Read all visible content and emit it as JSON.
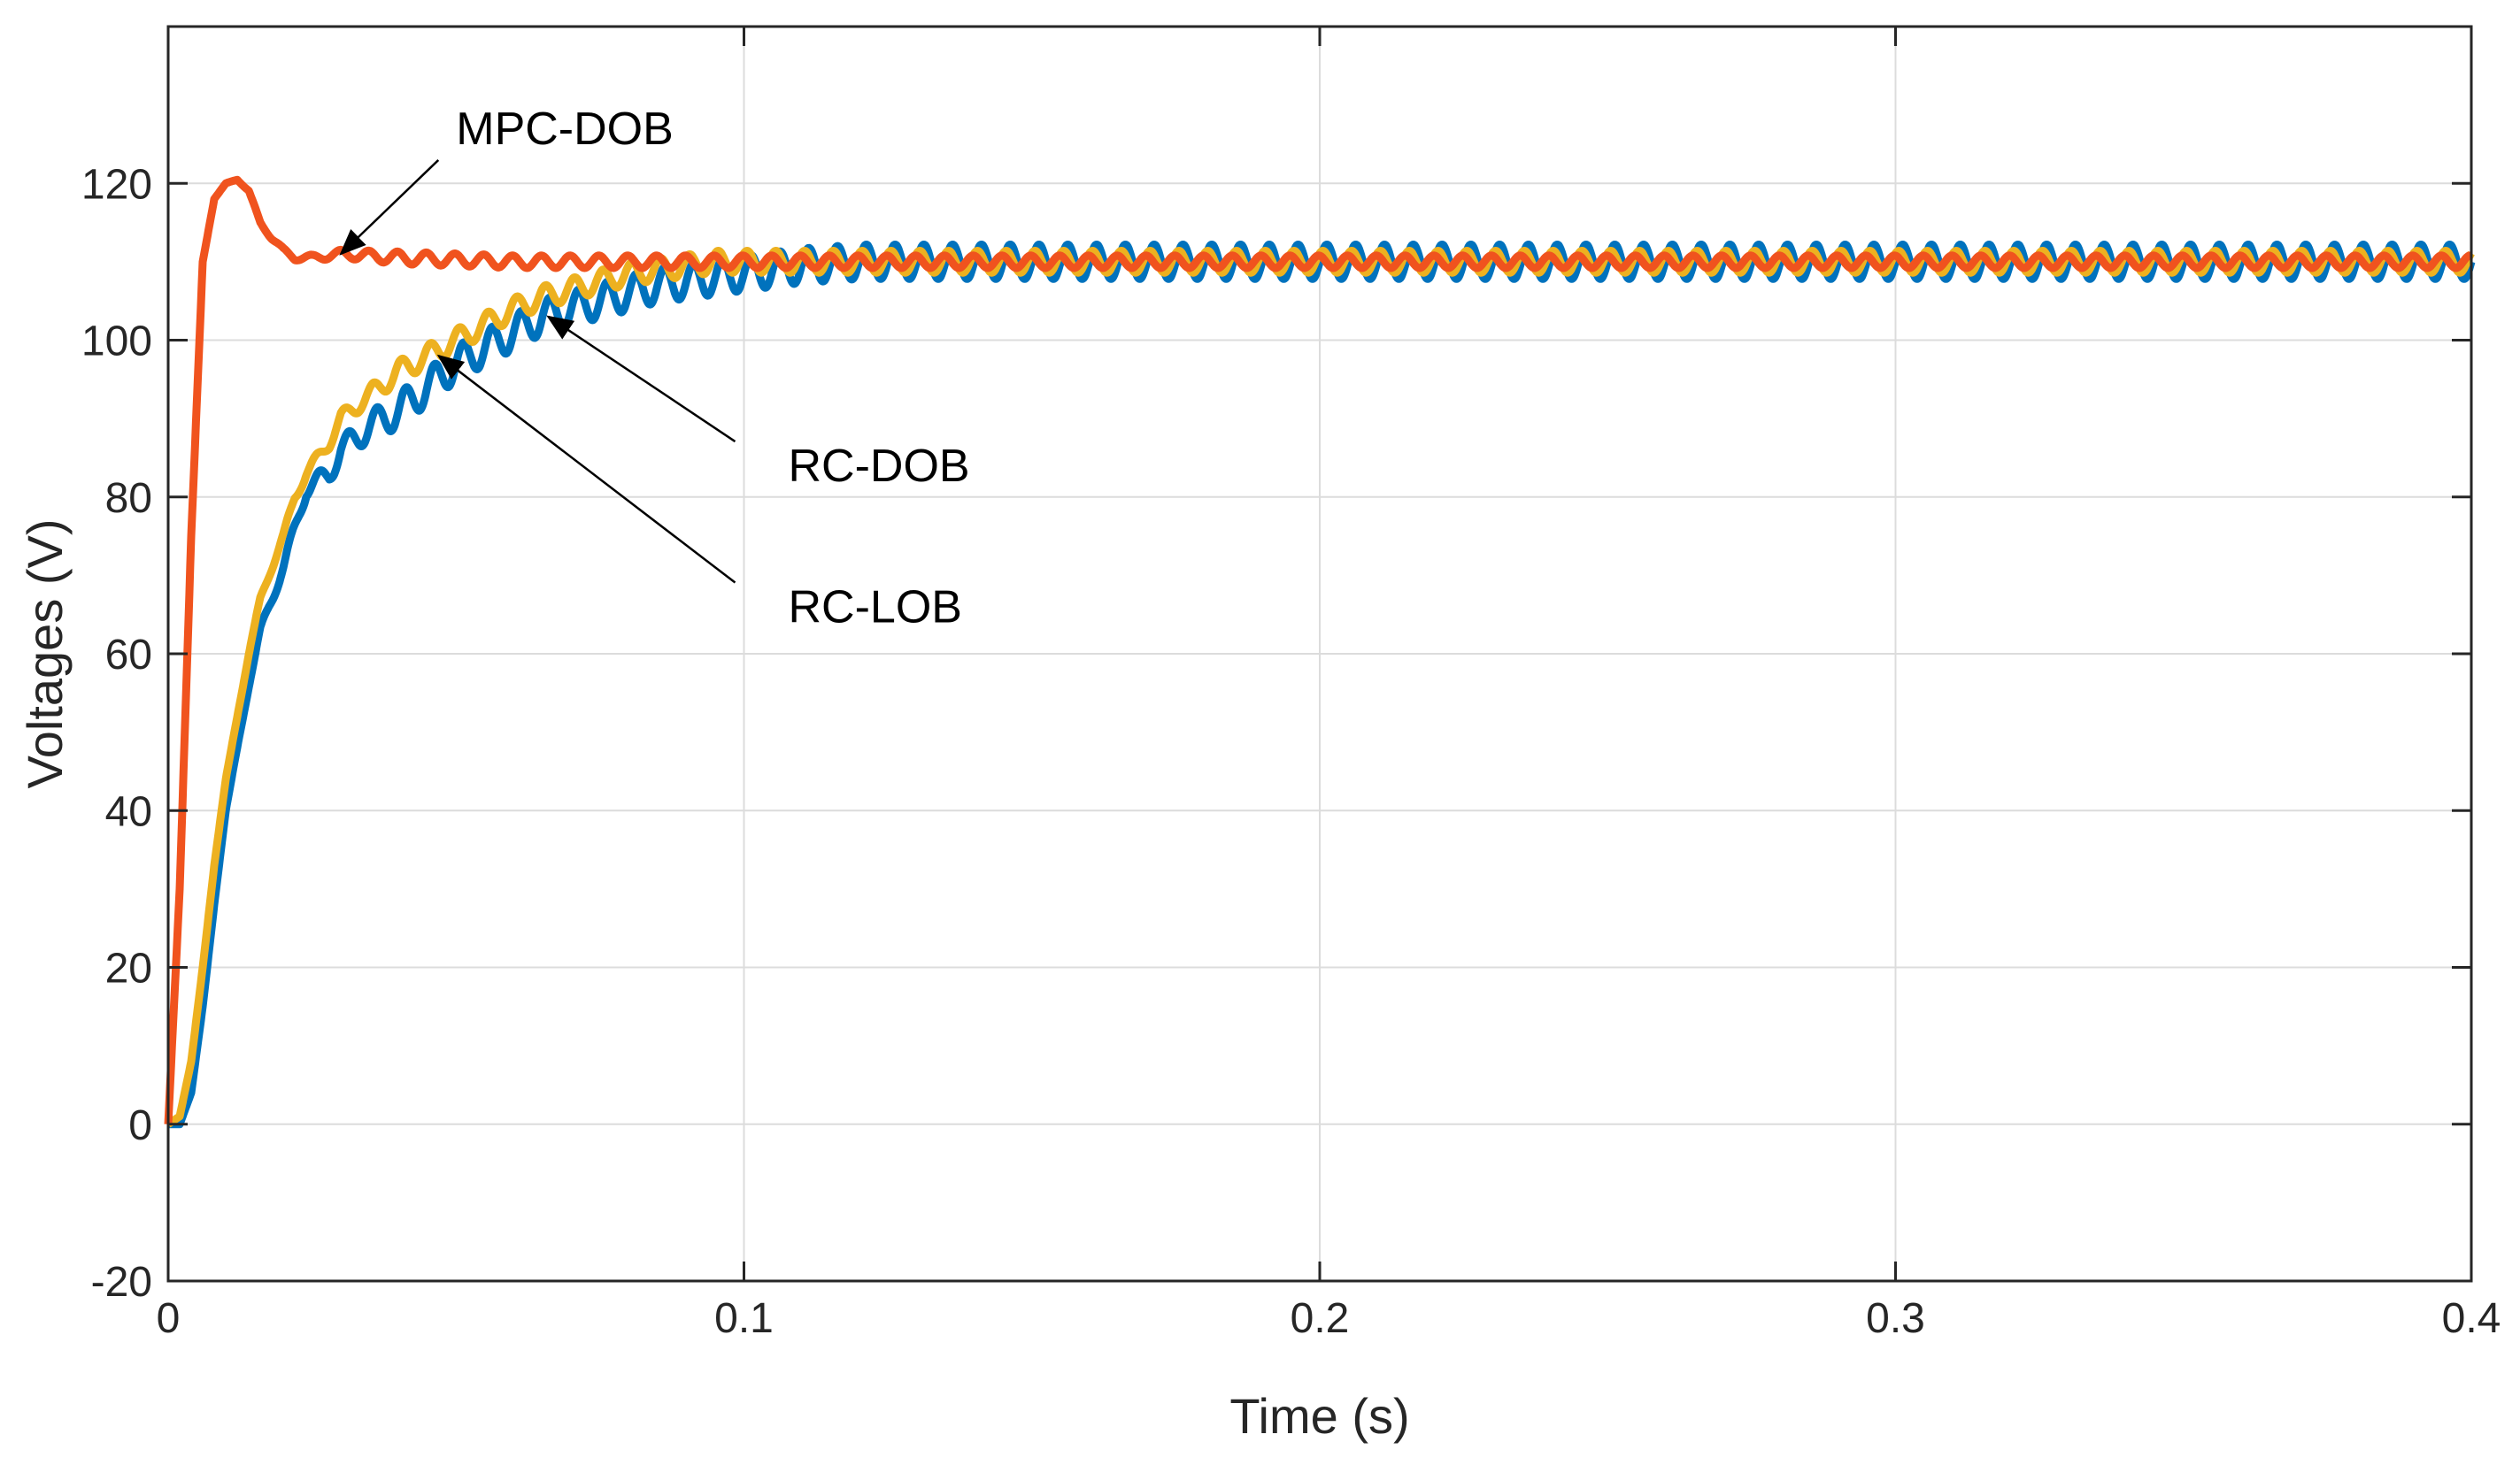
{
  "chart_data": {
    "type": "line",
    "title": "",
    "xlabel": "Time (s)",
    "ylabel": "Voltages (V)",
    "xlim": [
      0,
      0.4
    ],
    "ylim": [
      -20,
      140
    ],
    "xticks": [
      0,
      0.1,
      0.2,
      0.3,
      0.4
    ],
    "xtick_labels": [
      "0",
      "0.1",
      "0.2",
      "0.3",
      "0.4"
    ],
    "yticks": [
      -20,
      0,
      20,
      40,
      60,
      80,
      100,
      120
    ],
    "ytick_labels": [
      "-20",
      "0",
      "20",
      "40",
      "60",
      "80",
      "100",
      "120"
    ],
    "grid": true,
    "colors": {
      "mpc": "#f0531e",
      "rc_dob": "#0072bd",
      "rc_lob": "#edb120"
    },
    "series": [
      {
        "name": "RC-DOB",
        "color": "#0072bd",
        "x": [
          0,
          0.002,
          0.004,
          0.006,
          0.008,
          0.01,
          0.012,
          0.014,
          0.016,
          0.018,
          0.02,
          0.022,
          0.024,
          0.026,
          0.028,
          0.03,
          0.035,
          0.04,
          0.045,
          0.05,
          0.055,
          0.06,
          0.065,
          0.07,
          0.075,
          0.08,
          0.085,
          0.09,
          0.095,
          0.1,
          0.11,
          0.12,
          0.4
        ],
        "values": [
          0,
          0,
          4,
          15,
          28,
          40,
          48,
          56,
          63,
          67,
          71,
          76,
          81,
          82,
          83,
          86,
          89,
          91,
          94,
          97,
          99,
          101,
          103,
          104,
          105,
          106,
          107,
          107.5,
          108,
          108.5,
          109.5,
          110,
          110
        ],
        "osc_amp": 2.2,
        "osc_freq": 200
      },
      {
        "name": "RC-LOB",
        "color": "#edb120",
        "x": [
          0,
          0.002,
          0.004,
          0.006,
          0.008,
          0.01,
          0.012,
          0.014,
          0.016,
          0.018,
          0.02,
          0.022,
          0.024,
          0.026,
          0.028,
          0.03,
          0.035,
          0.04,
          0.045,
          0.05,
          0.055,
          0.06,
          0.065,
          0.07,
          0.075,
          0.08,
          0.085,
          0.09,
          0.095,
          0.1,
          0.12,
          0.4
        ],
        "values": [
          0,
          1,
          8,
          20,
          33,
          44,
          52,
          60,
          67,
          71,
          75,
          80,
          83,
          85,
          87,
          90,
          93,
          96,
          98,
          100,
          102,
          104,
          105.5,
          106.5,
          107.5,
          108.5,
          109,
          109.5,
          110,
          110,
          110,
          110
        ],
        "osc_amp": 1.4,
        "osc_freq": 200
      },
      {
        "name": "MPC-DOB",
        "color": "#f0531e",
        "x": [
          0,
          0.002,
          0.004,
          0.006,
          0.008,
          0.01,
          0.012,
          0.014,
          0.016,
          0.018,
          0.02,
          0.022,
          0.025,
          0.03,
          0.04,
          0.06,
          0.1,
          0.4
        ],
        "values": [
          0,
          30,
          75,
          110,
          118,
          120,
          120.5,
          119,
          115,
          113,
          111.5,
          110.5,
          110.5,
          111,
          110.5,
          110,
          110,
          110
        ],
        "osc_amp": 0.8,
        "osc_freq": 200
      }
    ],
    "annotations": [
      {
        "text": "MPC-DOB",
        "label_at": [
          0.05,
          125
        ],
        "arrow_to": [
          0.03,
          111
        ]
      },
      {
        "text": "RC-DOB",
        "label_at": [
          0.1,
          82
        ],
        "arrow_to": [
          0.066,
          103
        ]
      },
      {
        "text": "RC-LOB",
        "label_at": [
          0.1,
          64
        ],
        "arrow_to": [
          0.047,
          98
        ]
      }
    ]
  }
}
